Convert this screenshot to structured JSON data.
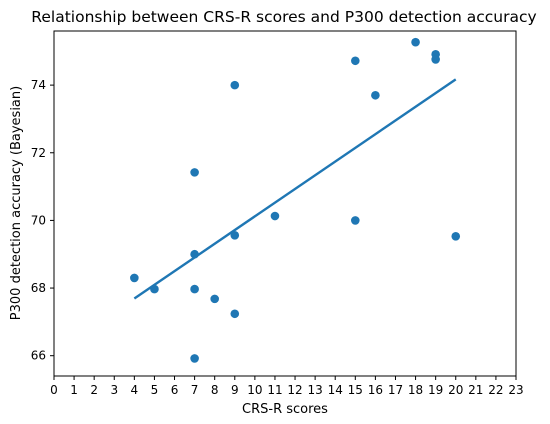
{
  "chart_data": {
    "type": "scatter",
    "title": "Relationship between CRS-R scores and P300 detection accuracy",
    "xlabel": "CRS-R scores",
    "ylabel": "P300 detection accuracy (Bayesian)",
    "xlim": [
      0,
      23
    ],
    "ylim": [
      65.4,
      75.6
    ],
    "xticks": [
      0,
      1,
      2,
      3,
      4,
      5,
      6,
      7,
      8,
      9,
      10,
      11,
      12,
      13,
      14,
      15,
      16,
      17,
      18,
      19,
      20,
      21,
      22,
      23
    ],
    "yticks": [
      66,
      68,
      70,
      72,
      74
    ],
    "grid": false,
    "legend": "none",
    "colors": {
      "points": "#1f77b4",
      "trend_line": "#1f77b4"
    },
    "series": [
      {
        "type": "scatter",
        "points": [
          {
            "x": 4,
            "y": 68.3
          },
          {
            "x": 5,
            "y": 67.97
          },
          {
            "x": 7,
            "y": 71.42
          },
          {
            "x": 7,
            "y": 69.0
          },
          {
            "x": 7,
            "y": 67.97
          },
          {
            "x": 7,
            "y": 65.92
          },
          {
            "x": 8,
            "y": 67.68
          },
          {
            "x": 9,
            "y": 74.0
          },
          {
            "x": 9,
            "y": 69.56
          },
          {
            "x": 9,
            "y": 67.24
          },
          {
            "x": 11,
            "y": 70.13
          },
          {
            "x": 15,
            "y": 74.72
          },
          {
            "x": 15,
            "y": 70.0
          },
          {
            "x": 16,
            "y": 73.7
          },
          {
            "x": 18,
            "y": 75.27
          },
          {
            "x": 19,
            "y": 74.91
          },
          {
            "x": 19,
            "y": 74.76
          },
          {
            "x": 20,
            "y": 69.53
          }
        ]
      },
      {
        "type": "line",
        "points": [
          {
            "x": 4,
            "y": 67.69
          },
          {
            "x": 20,
            "y": 74.17
          }
        ]
      }
    ]
  }
}
